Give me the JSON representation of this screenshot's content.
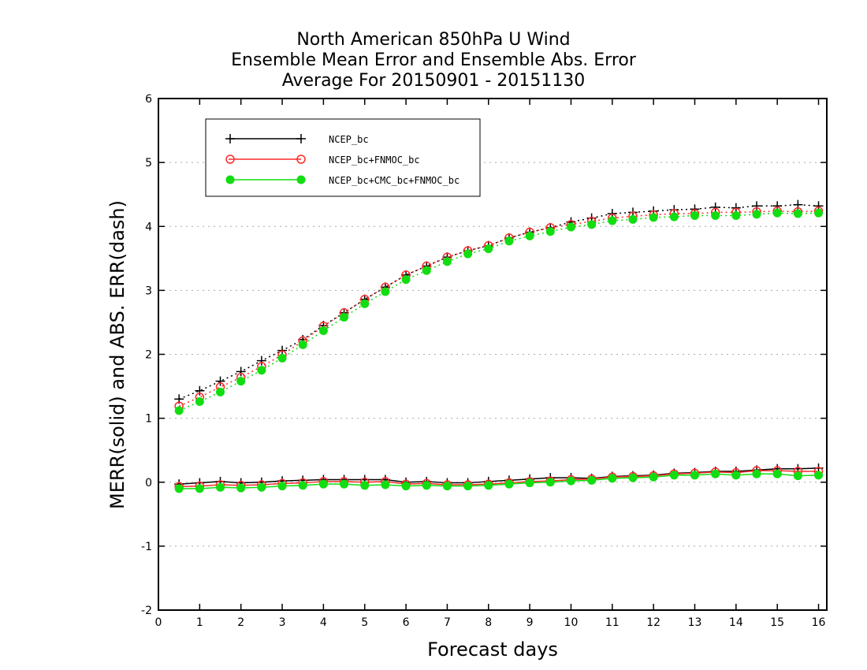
{
  "chart_data": {
    "type": "line",
    "title": [
      "North American 850hPa U Wind",
      "Ensemble Mean Error and Ensemble Abs. Error",
      "Average For 20150901 - 20151130"
    ],
    "xlabel": "Forecast days",
    "ylabel": "MERR(solid) and ABS. ERR(dash)",
    "xlim": [
      0,
      16.2
    ],
    "ylim": [
      -2,
      6
    ],
    "xticks": [
      0,
      1,
      2,
      3,
      4,
      5,
      6,
      7,
      8,
      9,
      10,
      11,
      12,
      13,
      14,
      15,
      16
    ],
    "yticks": [
      -2,
      -1,
      0,
      1,
      2,
      3,
      4,
      5,
      6
    ],
    "grid": "horizontal dotted",
    "legend_position": "top-left",
    "x": [
      0.5,
      1,
      1.5,
      2,
      2.5,
      3,
      3.5,
      4,
      4.5,
      5,
      5.5,
      6,
      6.5,
      7,
      7.5,
      8,
      8.5,
      9,
      9.5,
      10,
      10.5,
      11,
      11.5,
      12,
      12.5,
      13,
      13.5,
      14,
      14.5,
      15,
      15.5,
      16
    ],
    "series": [
      {
        "name": "NCEP_bc",
        "color": "#000000",
        "marker": "plus",
        "merr": [
          -0.03,
          -0.01,
          0.01,
          -0.01,
          0.0,
          0.02,
          0.03,
          0.04,
          0.04,
          0.04,
          0.04,
          0.0,
          0.01,
          -0.01,
          -0.01,
          0.01,
          0.03,
          0.05,
          0.07,
          0.07,
          0.06,
          0.09,
          0.1,
          0.11,
          0.14,
          0.15,
          0.17,
          0.17,
          0.19,
          0.21,
          0.21,
          0.22
        ],
        "abs_err": [
          1.3,
          1.43,
          1.58,
          1.73,
          1.9,
          2.06,
          2.23,
          2.45,
          2.65,
          2.86,
          3.05,
          3.24,
          3.38,
          3.52,
          3.62,
          3.7,
          3.82,
          3.91,
          3.98,
          4.07,
          4.13,
          4.2,
          4.22,
          4.24,
          4.26,
          4.27,
          4.3,
          4.29,
          4.32,
          4.32,
          4.34,
          4.32
        ]
      },
      {
        "name": "NCEP_bc+FNMOC_bc",
        "color": "#ff2a2a",
        "marker": "open-circle",
        "merr": [
          -0.07,
          -0.06,
          -0.04,
          -0.05,
          -0.04,
          -0.02,
          -0.01,
          0.01,
          0.01,
          0.0,
          0.01,
          -0.03,
          -0.02,
          -0.04,
          -0.04,
          -0.03,
          -0.01,
          0.01,
          0.02,
          0.04,
          0.05,
          0.08,
          0.09,
          0.1,
          0.13,
          0.14,
          0.16,
          0.15,
          0.18,
          0.18,
          0.17,
          0.17
        ],
        "abs_err": [
          1.19,
          1.33,
          1.49,
          1.64,
          1.81,
          1.99,
          2.21,
          2.44,
          2.65,
          2.86,
          3.05,
          3.24,
          3.38,
          3.52,
          3.62,
          3.7,
          3.82,
          3.91,
          3.98,
          4.03,
          4.08,
          4.13,
          4.16,
          4.18,
          4.2,
          4.2,
          4.22,
          4.22,
          4.23,
          4.24,
          4.23,
          4.24
        ]
      },
      {
        "name": "NCEP_bc+CMC_bc+FNMOC_bc",
        "color": "#11dd11",
        "marker": "filled-circle",
        "merr": [
          -0.1,
          -0.1,
          -0.08,
          -0.09,
          -0.08,
          -0.06,
          -0.05,
          -0.03,
          -0.03,
          -0.05,
          -0.04,
          -0.06,
          -0.05,
          -0.06,
          -0.06,
          -0.05,
          -0.03,
          -0.01,
          0.0,
          0.02,
          0.03,
          0.06,
          0.07,
          0.08,
          0.11,
          0.11,
          0.13,
          0.11,
          0.13,
          0.13,
          0.1,
          0.11
        ],
        "abs_err": [
          1.12,
          1.26,
          1.41,
          1.58,
          1.75,
          1.94,
          2.15,
          2.37,
          2.58,
          2.79,
          2.98,
          3.17,
          3.31,
          3.45,
          3.57,
          3.65,
          3.77,
          3.85,
          3.92,
          3.99,
          4.03,
          4.09,
          4.11,
          4.14,
          4.15,
          4.17,
          4.17,
          4.17,
          4.19,
          4.21,
          4.2,
          4.21
        ]
      }
    ]
  }
}
